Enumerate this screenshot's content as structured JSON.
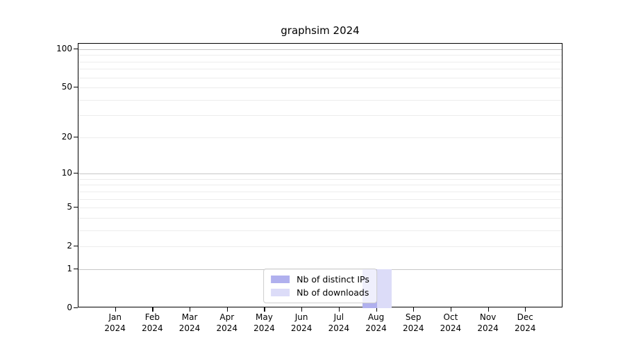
{
  "chart_data": {
    "type": "bar",
    "title": "graphsim 2024",
    "categories": [
      "Jan 2024",
      "Feb 2024",
      "Mar 2024",
      "Apr 2024",
      "May 2024",
      "Jun 2024",
      "Jul 2024",
      "Aug 2024",
      "Sep 2024",
      "Oct 2024",
      "Nov 2024",
      "Dec 2024"
    ],
    "series": [
      {
        "name": "Nb of distinct IPs",
        "color": "#b0b0ee",
        "values": [
          0,
          0,
          0,
          0,
          0,
          0,
          0,
          1,
          0,
          0,
          0,
          0
        ]
      },
      {
        "name": "Nb of downloads",
        "color": "#dcdcf8",
        "values": [
          0,
          0,
          0,
          0,
          0,
          0,
          0,
          1,
          0,
          0,
          0,
          0
        ]
      }
    ],
    "xlabel": "",
    "ylabel": "",
    "y_axis": {
      "scale": "log1p",
      "range": [
        0,
        100
      ],
      "ticks": [
        0,
        1,
        2,
        5,
        10,
        20,
        50,
        100
      ],
      "major_gridlines": [
        1,
        10,
        100
      ],
      "minor_gridlines": [
        2,
        3,
        4,
        5,
        6,
        7,
        8,
        9,
        20,
        30,
        40,
        50,
        60,
        70,
        80,
        90
      ]
    },
    "legend_position": "lower center",
    "grid": "horizontal"
  },
  "colors": {
    "axis": "#000000",
    "text": "#000000",
    "major_grid": "#c6c6c6",
    "minor_grid": "#ececec",
    "legend_border": "#cccccc",
    "legend_background": "rgba(255,255,255,0.8)"
  }
}
